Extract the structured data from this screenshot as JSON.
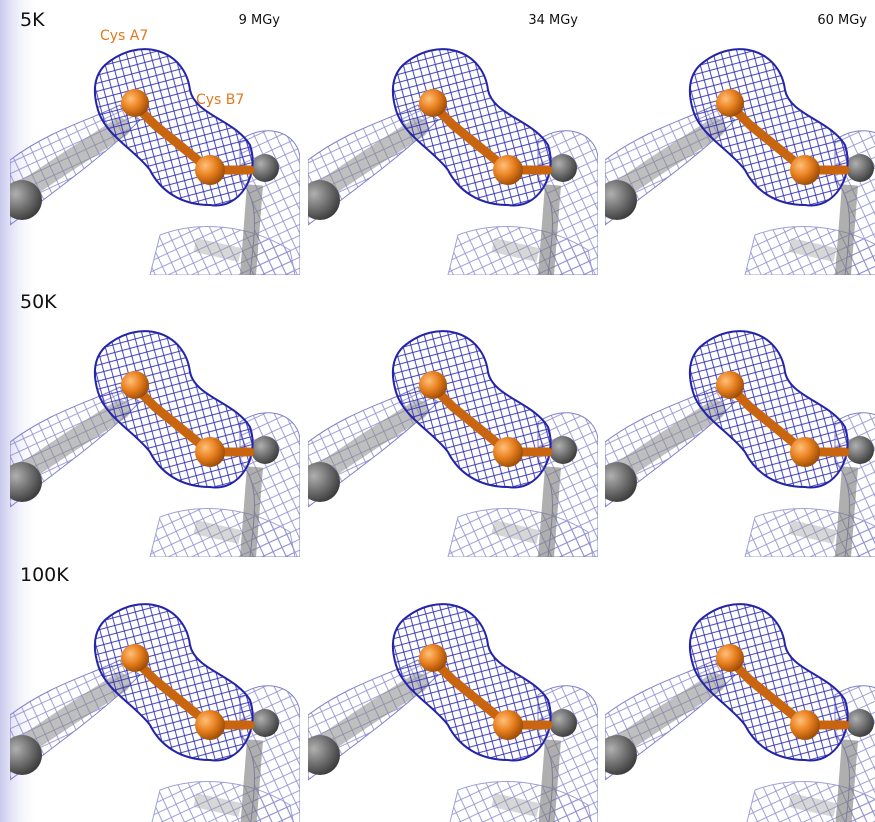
{
  "row_labels": [
    "5K",
    "50K",
    "100K"
  ],
  "column_labels": [
    "9 MGy",
    "34 MGy",
    "60 MGy"
  ],
  "annotations": [
    "Cys A7",
    "Cys B7"
  ]
}
